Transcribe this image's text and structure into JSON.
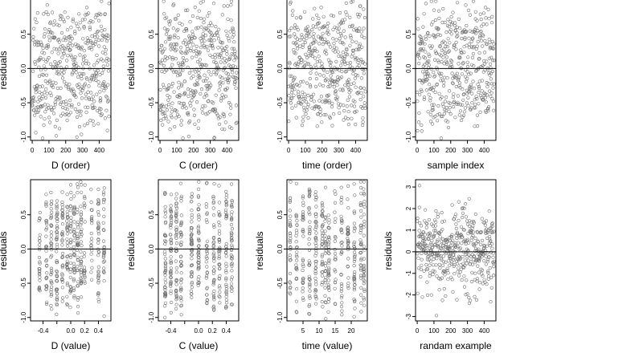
{
  "figure": {
    "background": "#ffffff",
    "point_color": "#6e6e6e",
    "line_color": "#000000"
  },
  "chart_data": [
    {
      "type": "scatter",
      "title": "",
      "xlabel": "D (order)",
      "ylabel": "residuals",
      "xlim": [
        -10,
        470
      ],
      "ylim": [
        -1.05,
        1.0
      ],
      "xticks": [
        0,
        100,
        200,
        300,
        400
      ],
      "yticks": [
        -1.0,
        -0.5,
        0.0,
        0.5
      ],
      "ytick_labels": [
        "-1.0",
        "-0.5",
        "0.0",
        "0.5"
      ],
      "reference_line": 0,
      "sample_points": {
        "n": 460,
        "kind": "order",
        "clusters": [],
        "seed": 11
      }
    },
    {
      "type": "scatter",
      "title": "",
      "xlabel": "C (order)",
      "ylabel": "residuals",
      "xlim": [
        -10,
        470
      ],
      "ylim": [
        -1.05,
        1.0
      ],
      "xticks": [
        0,
        100,
        200,
        300,
        400
      ],
      "yticks": [
        -1.0,
        -0.5,
        0.0,
        0.5
      ],
      "ytick_labels": [
        "-1.0",
        "-0.5",
        "0.0",
        "0.5"
      ],
      "reference_line": 0,
      "sample_points": {
        "n": 460,
        "kind": "order",
        "clusters": [],
        "seed": 23
      }
    },
    {
      "type": "scatter",
      "title": "",
      "xlabel": "time (order)",
      "ylabel": "residuals",
      "xlim": [
        -10,
        470
      ],
      "ylim": [
        -1.05,
        1.0
      ],
      "xticks": [
        0,
        100,
        200,
        300,
        400
      ],
      "yticks": [
        -1.0,
        -0.5,
        0.0,
        0.5
      ],
      "ytick_labels": [
        "-1.0",
        "-0.5",
        "0.0",
        "0.5"
      ],
      "reference_line": 0,
      "sample_points": {
        "n": 460,
        "kind": "order",
        "clusters": [],
        "seed": 37
      }
    },
    {
      "type": "scatter",
      "title": "",
      "xlabel": "sample index",
      "ylabel": "residuals",
      "xlim": [
        -10,
        470
      ],
      "ylim": [
        -1.05,
        1.0
      ],
      "xticks": [
        0,
        100,
        200,
        300,
        400
      ],
      "yticks": [
        -1.0,
        -0.5,
        0.0,
        0.5
      ],
      "ytick_labels": [
        "-1.0",
        "-0.5",
        "0.0",
        "0.5"
      ],
      "reference_line": 0,
      "sample_points": {
        "n": 460,
        "kind": "order",
        "clusters": [],
        "seed": 41
      }
    },
    {
      "type": "scatter",
      "title": "",
      "xlabel": "D (value)",
      "ylabel": "residuals",
      "xlim": [
        -0.58,
        0.58
      ],
      "ylim": [
        -1.05,
        1.0
      ],
      "xticks": [
        -0.4,
        -0.2,
        0.0,
        0.2,
        0.4
      ],
      "xtick_labels": [
        "-0.4",
        "",
        "0.0",
        "0.2",
        "0.4"
      ],
      "yticks": [
        -1.0,
        -0.5,
        0.0,
        0.5
      ],
      "ytick_labels": [
        "-1.0",
        "-0.5",
        "0.0",
        "0.5"
      ],
      "reference_line": 0,
      "sample_points": {
        "n": 460,
        "kind": "value",
        "clusters": [
          -0.45,
          -0.35,
          -0.28,
          -0.2,
          -0.12,
          -0.05,
          0.0,
          0.05,
          0.1,
          0.15,
          0.2,
          0.3,
          0.4,
          0.48
        ],
        "seed": 53
      }
    },
    {
      "type": "scatter",
      "title": "",
      "xlabel": "C (value)",
      "ylabel": "residuals",
      "xlim": [
        -0.58,
        0.58
      ],
      "ylim": [
        -1.05,
        1.0
      ],
      "xticks": [
        -0.4,
        -0.2,
        0.0,
        0.2,
        0.4
      ],
      "xtick_labels": [
        "-0.4",
        "",
        "0.0",
        "0.2",
        "0.4"
      ],
      "yticks": [
        -1.0,
        -0.5,
        0.0,
        0.5
      ],
      "ytick_labels": [
        "-1.0",
        "-0.5",
        "0.0",
        "0.5"
      ],
      "reference_line": 0,
      "sample_points": {
        "n": 460,
        "kind": "value",
        "clusters": [
          -0.48,
          -0.4,
          -0.32,
          -0.25,
          -0.1,
          0.0,
          0.12,
          0.22,
          0.3,
          0.4,
          0.48
        ],
        "seed": 67
      }
    },
    {
      "type": "scatter",
      "title": "",
      "xlabel": "time (value)",
      "ylabel": "residuals",
      "xlim": [
        0,
        25
      ],
      "ylim": [
        -1.05,
        1.0
      ],
      "xticks": [
        5,
        10,
        15,
        20
      ],
      "yticks": [
        -1.0,
        -0.5,
        0.0,
        0.5
      ],
      "ytick_labels": [
        "-1.0",
        "-0.5",
        "0.0",
        "0.5"
      ],
      "reference_line": 0,
      "sample_points": {
        "n": 460,
        "kind": "value",
        "clusters": [
          1,
          3,
          5,
          7,
          9,
          11,
          12,
          13,
          15,
          17,
          19,
          21,
          23,
          24
        ],
        "seed": 79
      }
    },
    {
      "type": "scatter",
      "title": "",
      "xlabel": "randam example",
      "ylabel": "residuals",
      "xlim": [
        -10,
        470
      ],
      "ylim": [
        -3.2,
        3.3
      ],
      "xticks": [
        0,
        100,
        200,
        300,
        400
      ],
      "yticks": [
        -3,
        -2,
        -1,
        0,
        1,
        2,
        3
      ],
      "ytick_labels": [
        "-3",
        "-2",
        "-1",
        "0",
        "1",
        "2",
        "3"
      ],
      "reference_line": 0,
      "sample_points": {
        "n": 460,
        "kind": "normal",
        "clusters": [],
        "seed": 97
      }
    }
  ]
}
